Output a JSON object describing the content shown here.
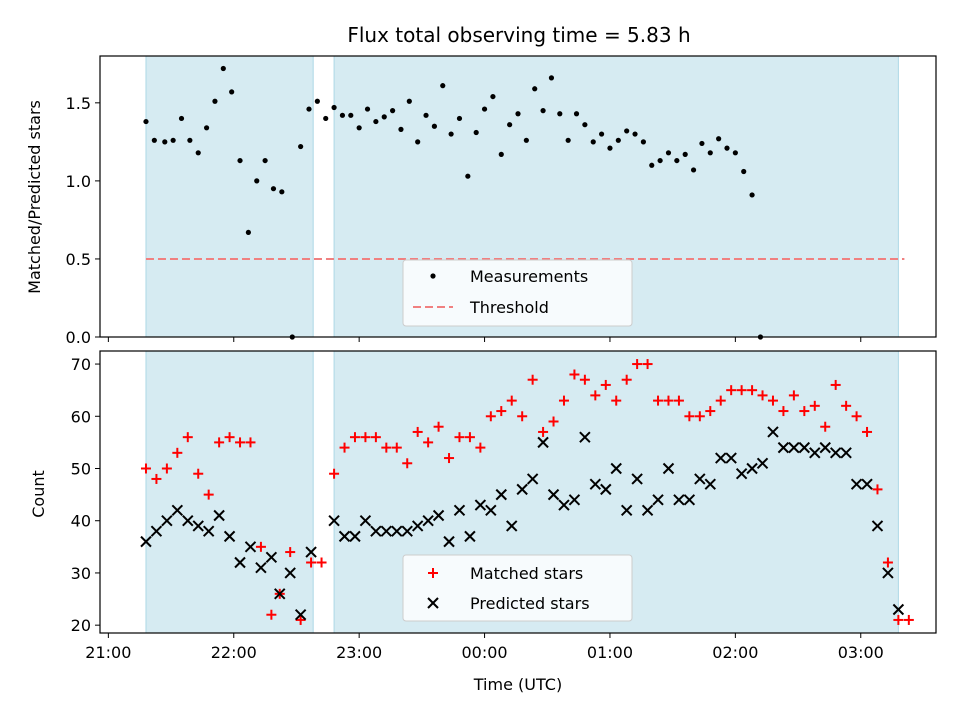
{
  "colors": {
    "band": "#add8e6",
    "threshold": "#f08080",
    "matched": "#ff0000",
    "predicted": "#000000",
    "measurement": "#000000"
  },
  "chart_data": [
    {
      "type": "scatter",
      "title": "Flux total observing time = 5.83 h",
      "xlabel": "",
      "ylabel": "Matched/Predicted stars",
      "ylim": [
        0,
        1.8
      ],
      "xlim": [
        "20:56",
        "03:36"
      ],
      "yticks": [
        "0.0",
        "0.5",
        "1.0",
        "1.5"
      ],
      "shaded_intervals": [
        [
          "21:18",
          "22:38"
        ],
        [
          "22:48",
          "03:18"
        ]
      ],
      "threshold": 0.5,
      "legend_position": "lower-center",
      "legend": {
        "measurements": "Measurements",
        "threshold": "Threshold"
      },
      "series": [
        {
          "name": "Measurements",
          "points": [
            [
              "21:18",
              1.38
            ],
            [
              "21:22",
              1.26
            ],
            [
              "21:27",
              1.25
            ],
            [
              "21:31",
              1.26
            ],
            [
              "21:35",
              1.4
            ],
            [
              "21:39",
              1.26
            ],
            [
              "21:43",
              1.18
            ],
            [
              "21:47",
              1.34
            ],
            [
              "21:51",
              1.51
            ],
            [
              "21:55",
              1.72
            ],
            [
              "21:59",
              1.57
            ],
            [
              "22:03",
              1.13
            ],
            [
              "22:07",
              0.67
            ],
            [
              "22:11",
              1.0
            ],
            [
              "22:15",
              1.13
            ],
            [
              "22:19",
              0.95
            ],
            [
              "22:23",
              0.93
            ],
            [
              "22:28",
              0.0
            ],
            [
              "22:32",
              1.22
            ],
            [
              "22:36",
              1.46
            ],
            [
              "22:40",
              1.51
            ],
            [
              "22:44",
              1.4
            ],
            [
              "22:48",
              1.47
            ],
            [
              "22:52",
              1.42
            ],
            [
              "22:56",
              1.42
            ],
            [
              "23:00",
              1.34
            ],
            [
              "23:04",
              1.46
            ],
            [
              "23:08",
              1.38
            ],
            [
              "23:12",
              1.41
            ],
            [
              "23:16",
              1.45
            ],
            [
              "23:20",
              1.33
            ],
            [
              "23:24",
              1.51
            ],
            [
              "23:28",
              1.25
            ],
            [
              "23:32",
              1.42
            ],
            [
              "23:36",
              1.35
            ],
            [
              "23:40",
              1.61
            ],
            [
              "23:44",
              1.3
            ],
            [
              "23:48",
              1.4
            ],
            [
              "23:52",
              1.03
            ],
            [
              "23:56",
              1.31
            ],
            [
              "00:00",
              1.46
            ],
            [
              "00:04",
              1.54
            ],
            [
              "00:08",
              1.17
            ],
            [
              "00:12",
              1.36
            ],
            [
              "00:16",
              1.43
            ],
            [
              "00:20",
              1.26
            ],
            [
              "00:24",
              1.59
            ],
            [
              "00:28",
              1.45
            ],
            [
              "00:32",
              1.66
            ],
            [
              "00:36",
              1.43
            ],
            [
              "00:40",
              1.26
            ],
            [
              "00:44",
              1.43
            ],
            [
              "00:48",
              1.36
            ],
            [
              "00:52",
              1.25
            ],
            [
              "00:56",
              1.3
            ],
            [
              "01:00",
              1.21
            ],
            [
              "01:04",
              1.26
            ],
            [
              "01:08",
              1.32
            ],
            [
              "01:12",
              1.3
            ],
            [
              "01:16",
              1.25
            ],
            [
              "01:20",
              1.1
            ],
            [
              "01:24",
              1.13
            ],
            [
              "01:28",
              1.18
            ],
            [
              "01:32",
              1.13
            ],
            [
              "01:36",
              1.17
            ],
            [
              "01:40",
              1.07
            ],
            [
              "01:44",
              1.24
            ],
            [
              "01:48",
              1.18
            ],
            [
              "01:52",
              1.27
            ],
            [
              "01:56",
              1.21
            ],
            [
              "02:00",
              1.18
            ],
            [
              "02:04",
              1.06
            ],
            [
              "02:08",
              0.91
            ],
            [
              "02:12",
              0.0
            ]
          ]
        }
      ]
    },
    {
      "type": "scatter",
      "xlabel": "Time (UTC)",
      "ylabel": "Count",
      "ylim": [
        18.5,
        72.5
      ],
      "xlim": [
        "20:56",
        "03:36"
      ],
      "xticks": [
        "21:00",
        "22:00",
        "23:00",
        "00:00",
        "01:00",
        "02:00",
        "03:00"
      ],
      "yticks": [
        "20",
        "30",
        "40",
        "50",
        "60",
        "70"
      ],
      "shaded_intervals": [
        [
          "21:18",
          "22:38"
        ],
        [
          "22:48",
          "03:18"
        ]
      ],
      "legend_position": "lower-center",
      "series": [
        {
          "name": "Matched stars",
          "marker": "plus",
          "points": [
            [
              "21:18",
              50
            ],
            [
              "21:23",
              48
            ],
            [
              "21:28",
              50
            ],
            [
              "21:33",
              53
            ],
            [
              "21:38",
              56
            ],
            [
              "21:43",
              49
            ],
            [
              "21:48",
              45
            ],
            [
              "21:53",
              55
            ],
            [
              "21:58",
              56
            ],
            [
              "22:03",
              55
            ],
            [
              "22:08",
              55
            ],
            [
              "22:13",
              35
            ],
            [
              "22:18",
              22
            ],
            [
              "22:22",
              26
            ],
            [
              "22:27",
              34
            ],
            [
              "22:32",
              21
            ],
            [
              "22:37",
              32
            ],
            [
              "22:42",
              32
            ],
            [
              "22:48",
              49
            ],
            [
              "22:53",
              54
            ],
            [
              "22:58",
              56
            ],
            [
              "23:03",
              56
            ],
            [
              "23:08",
              56
            ],
            [
              "23:13",
              54
            ],
            [
              "23:18",
              54
            ],
            [
              "23:23",
              51
            ],
            [
              "23:28",
              57
            ],
            [
              "23:33",
              55
            ],
            [
              "23:38",
              58
            ],
            [
              "23:43",
              52
            ],
            [
              "23:48",
              56
            ],
            [
              "23:53",
              56
            ],
            [
              "23:58",
              54
            ],
            [
              "00:03",
              60
            ],
            [
              "00:08",
              61
            ],
            [
              "00:13",
              63
            ],
            [
              "00:18",
              60
            ],
            [
              "00:23",
              67
            ],
            [
              "00:28",
              57
            ],
            [
              "00:33",
              59
            ],
            [
              "00:38",
              63
            ],
            [
              "00:43",
              68
            ],
            [
              "00:48",
              67
            ],
            [
              "00:53",
              64
            ],
            [
              "00:58",
              66
            ],
            [
              "01:03",
              63
            ],
            [
              "01:08",
              67
            ],
            [
              "01:13",
              70
            ],
            [
              "01:18",
              70
            ],
            [
              "01:23",
              63
            ],
            [
              "01:28",
              63
            ],
            [
              "01:33",
              63
            ],
            [
              "01:38",
              60
            ],
            [
              "01:43",
              60
            ],
            [
              "01:48",
              61
            ],
            [
              "01:53",
              63
            ],
            [
              "01:58",
              65
            ],
            [
              "02:03",
              65
            ],
            [
              "02:08",
              65
            ],
            [
              "02:13",
              64
            ],
            [
              "02:18",
              63
            ],
            [
              "02:23",
              61
            ],
            [
              "02:28",
              64
            ],
            [
              "02:33",
              61
            ],
            [
              "02:38",
              62
            ],
            [
              "02:43",
              58
            ],
            [
              "02:48",
              66
            ],
            [
              "02:53",
              62
            ],
            [
              "02:58",
              60
            ],
            [
              "03:03",
              57
            ],
            [
              "03:08",
              46
            ],
            [
              "03:13",
              32
            ],
            [
              "03:18",
              21
            ],
            [
              "03:23",
              21
            ]
          ]
        },
        {
          "name": "Predicted stars",
          "marker": "x",
          "points": [
            [
              "21:18",
              36
            ],
            [
              "21:23",
              38
            ],
            [
              "21:28",
              40
            ],
            [
              "21:33",
              42
            ],
            [
              "21:38",
              40
            ],
            [
              "21:43",
              39
            ],
            [
              "21:48",
              38
            ],
            [
              "21:53",
              41
            ],
            [
              "21:58",
              37
            ],
            [
              "22:03",
              32
            ],
            [
              "22:08",
              35
            ],
            [
              "22:13",
              31
            ],
            [
              "22:18",
              33
            ],
            [
              "22:22",
              26
            ],
            [
              "22:27",
              30
            ],
            [
              "22:32",
              22
            ],
            [
              "22:37",
              34
            ],
            [
              "22:48",
              40
            ],
            [
              "22:53",
              37
            ],
            [
              "22:58",
              37
            ],
            [
              "23:03",
              40
            ],
            [
              "23:08",
              38
            ],
            [
              "23:13",
              38
            ],
            [
              "23:18",
              38
            ],
            [
              "23:23",
              38
            ],
            [
              "23:28",
              39
            ],
            [
              "23:33",
              40
            ],
            [
              "23:38",
              41
            ],
            [
              "23:43",
              36
            ],
            [
              "23:48",
              42
            ],
            [
              "23:53",
              37
            ],
            [
              "23:58",
              43
            ],
            [
              "00:03",
              42
            ],
            [
              "00:08",
              45
            ],
            [
              "00:13",
              39
            ],
            [
              "00:18",
              46
            ],
            [
              "00:23",
              48
            ],
            [
              "00:28",
              55
            ],
            [
              "00:33",
              45
            ],
            [
              "00:38",
              43
            ],
            [
              "00:43",
              44
            ],
            [
              "00:48",
              56
            ],
            [
              "00:53",
              47
            ],
            [
              "00:58",
              46
            ],
            [
              "01:03",
              50
            ],
            [
              "01:08",
              42
            ],
            [
              "01:13",
              48
            ],
            [
              "01:18",
              42
            ],
            [
              "01:23",
              44
            ],
            [
              "01:28",
              50
            ],
            [
              "01:33",
              44
            ],
            [
              "01:38",
              44
            ],
            [
              "01:43",
              48
            ],
            [
              "01:48",
              47
            ],
            [
              "01:53",
              52
            ],
            [
              "01:58",
              52
            ],
            [
              "02:03",
              49
            ],
            [
              "02:08",
              50
            ],
            [
              "02:13",
              51
            ],
            [
              "02:18",
              57
            ],
            [
              "02:23",
              54
            ],
            [
              "02:28",
              54
            ],
            [
              "02:33",
              54
            ],
            [
              "02:38",
              53
            ],
            [
              "02:43",
              54
            ],
            [
              "02:48",
              53
            ],
            [
              "02:53",
              53
            ],
            [
              "02:58",
              47
            ],
            [
              "03:03",
              47
            ],
            [
              "03:08",
              39
            ],
            [
              "03:13",
              30
            ],
            [
              "03:18",
              23
            ]
          ]
        }
      ]
    }
  ]
}
